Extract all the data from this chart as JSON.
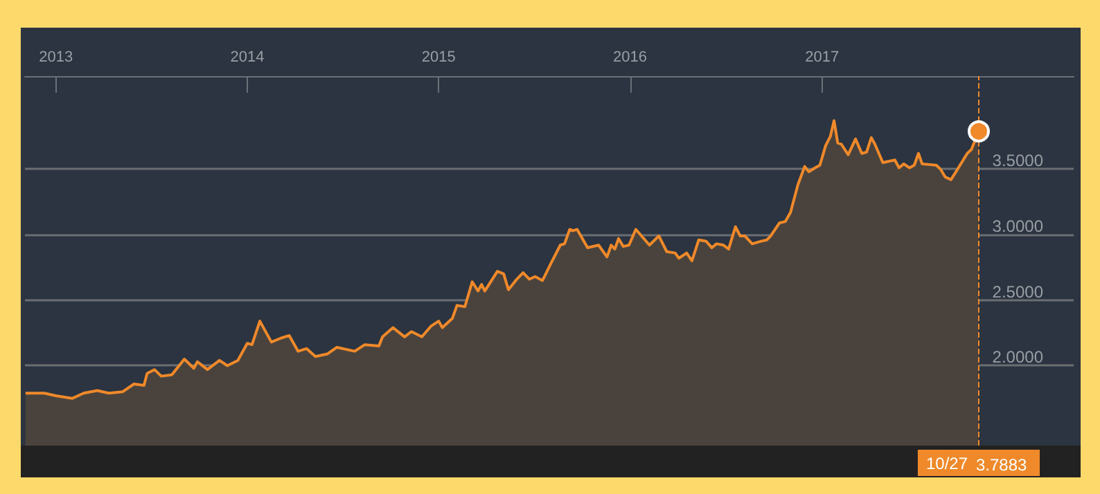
{
  "chart_data": {
    "type": "area",
    "x": [
      "2012-11-04",
      "2012-12-10",
      "2013-01-01",
      "2013-02-01",
      "2013-02-23",
      "2013-03-21",
      "2013-04-12",
      "2013-05-08",
      "2013-05-30",
      "2013-06-18",
      "2013-06-24",
      "2013-07-08",
      "2013-07-21",
      "2013-08-10",
      "2013-09-03",
      "2013-09-21",
      "2013-09-28",
      "2013-10-17",
      "2013-11-09",
      "2013-11-24",
      "2013-12-14",
      "2014-01-01",
      "2014-01-10",
      "2014-01-25",
      "2014-02-16",
      "2014-03-06",
      "2014-03-22",
      "2014-04-08",
      "2014-04-24",
      "2014-05-11",
      "2014-06-03",
      "2014-06-21",
      "2014-07-25",
      "2014-08-13",
      "2014-09-09",
      "2014-09-16",
      "2014-10-06",
      "2014-10-28",
      "2014-11-10",
      "2014-11-30",
      "2014-12-17",
      "2015-01-01",
      "2015-01-08",
      "2015-01-27",
      "2015-02-05",
      "2015-02-20",
      "2015-03-06",
      "2015-03-17",
      "2015-03-24",
      "2015-03-30",
      "2015-04-23",
      "2015-05-05",
      "2015-05-14",
      "2015-05-30",
      "2015-06-11",
      "2015-06-23",
      "2015-07-04",
      "2015-07-18",
      "2015-08-03",
      "2015-08-21",
      "2015-08-29",
      "2015-09-08",
      "2015-09-14",
      "2015-09-22",
      "2015-10-12",
      "2015-11-02",
      "2015-11-18",
      "2015-11-26",
      "2015-12-03",
      "2015-12-10",
      "2015-12-19",
      "2015-12-30",
      "2016-01-12",
      "2016-02-07",
      "2016-02-25",
      "2016-03-11",
      "2016-03-27",
      "2016-04-03",
      "2016-04-18",
      "2016-04-28",
      "2016-05-11",
      "2016-05-25",
      "2016-06-05",
      "2016-06-14",
      "2016-06-27",
      "2016-07-07",
      "2016-07-20",
      "2016-07-29",
      "2016-08-07",
      "2016-08-21",
      "2016-09-07",
      "2016-09-18",
      "2016-09-25",
      "2016-10-12",
      "2016-10-23",
      "2016-11-02",
      "2016-11-16",
      "2016-11-29",
      "2016-12-07",
      "2016-12-19",
      "2016-12-28",
      "2017-01-08",
      "2017-01-17",
      "2017-01-24",
      "2017-01-31",
      "2017-02-07",
      "2017-02-20",
      "2017-03-06",
      "2017-03-18",
      "2017-03-27",
      "2017-04-05",
      "2017-04-12",
      "2017-04-27",
      "2017-05-20",
      "2017-05-28",
      "2017-06-06",
      "2017-06-17",
      "2017-06-26",
      "2017-07-04",
      "2017-07-11",
      "2017-08-07",
      "2017-08-15",
      "2017-08-24",
      "2017-09-04",
      "2017-09-12",
      "2017-10-05",
      "2017-10-13",
      "2017-10-27"
    ],
    "series": [
      {
        "color": "#f0892a",
        "values": [
          1.79,
          1.79,
          1.77,
          1.75,
          1.79,
          1.81,
          1.79,
          1.8,
          1.86,
          1.85,
          1.94,
          1.97,
          1.92,
          1.93,
          2.05,
          1.98,
          2.03,
          1.97,
          2.04,
          2.0,
          2.04,
          2.17,
          2.16,
          2.34,
          2.18,
          2.21,
          2.23,
          2.11,
          2.13,
          2.07,
          2.09,
          2.14,
          2.11,
          2.16,
          2.15,
          2.22,
          2.29,
          2.22,
          2.26,
          2.22,
          2.3,
          2.34,
          2.29,
          2.36,
          2.46,
          2.45,
          2.64,
          2.57,
          2.62,
          2.57,
          2.72,
          2.7,
          2.58,
          2.66,
          2.71,
          2.66,
          2.68,
          2.65,
          2.78,
          2.92,
          2.93,
          3.04,
          3.03,
          3.04,
          2.9,
          2.92,
          2.83,
          2.92,
          2.89,
          2.97,
          2.91,
          2.92,
          3.04,
          2.92,
          2.99,
          2.87,
          2.86,
          2.82,
          2.86,
          2.8,
          2.96,
          2.95,
          2.9,
          2.93,
          2.92,
          2.89,
          3.06,
          2.99,
          2.99,
          2.93,
          2.95,
          2.96,
          2.99,
          3.09,
          3.1,
          3.17,
          3.38,
          3.52,
          3.48,
          3.51,
          3.53,
          3.68,
          3.75,
          3.87,
          3.7,
          3.69,
          3.61,
          3.73,
          3.62,
          3.63,
          3.74,
          3.69,
          3.55,
          3.57,
          3.51,
          3.54,
          3.51,
          3.53,
          3.62,
          3.54,
          3.53,
          3.5,
          3.44,
          3.42,
          3.47,
          3.62,
          3.65,
          3.7883
        ]
      }
    ],
    "xlim": [
      "2012-11-03",
      "2018-04-26"
    ],
    "xticks": [
      "2013",
      "2014",
      "2015",
      "2016",
      "2017"
    ],
    "ylim": [
      1.39,
      4.21
    ],
    "yticks": [
      {
        "value": 2,
        "label": "2.0000"
      },
      {
        "value": 2.5,
        "label": "2.5000"
      },
      {
        "value": 3,
        "label": "3.0000"
      },
      {
        "value": 3.5,
        "label": "3.5000"
      }
    ],
    "grid": "y",
    "ref_lines": [
      {
        "axis": "x",
        "value": "2017-10-27",
        "label": "10/27",
        "color": "#f0892a",
        "line_style": "dashed"
      }
    ],
    "annotations": [
      "3.7883"
    ]
  }
}
